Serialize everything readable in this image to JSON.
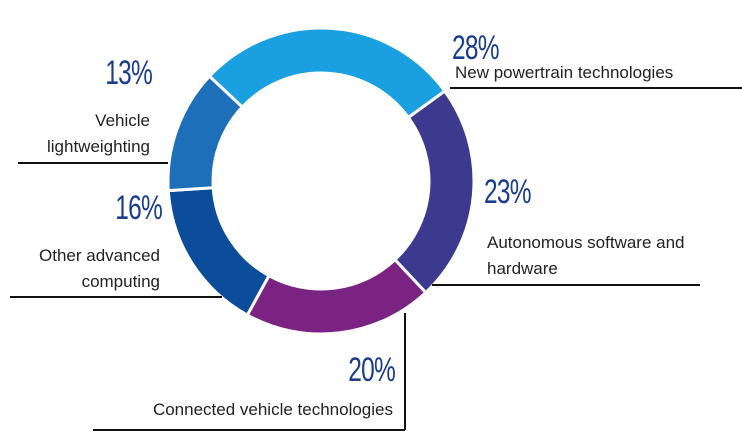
{
  "chart_data": {
    "type": "donut",
    "categories": [
      "New powertrain technologies",
      "Autonomous software and hardware",
      "Connected vehicle technologies",
      "Other advanced computing",
      "Vehicle lightweighting"
    ],
    "values": [
      28,
      23,
      20,
      16,
      13
    ],
    "value_labels": [
      "28%",
      "23%",
      "20%",
      "16%",
      "13%"
    ],
    "colors": [
      "#1a9fe0",
      "#3b3a8e",
      "#7b2383",
      "#0b4c9b",
      "#1e6fba"
    ]
  }
}
